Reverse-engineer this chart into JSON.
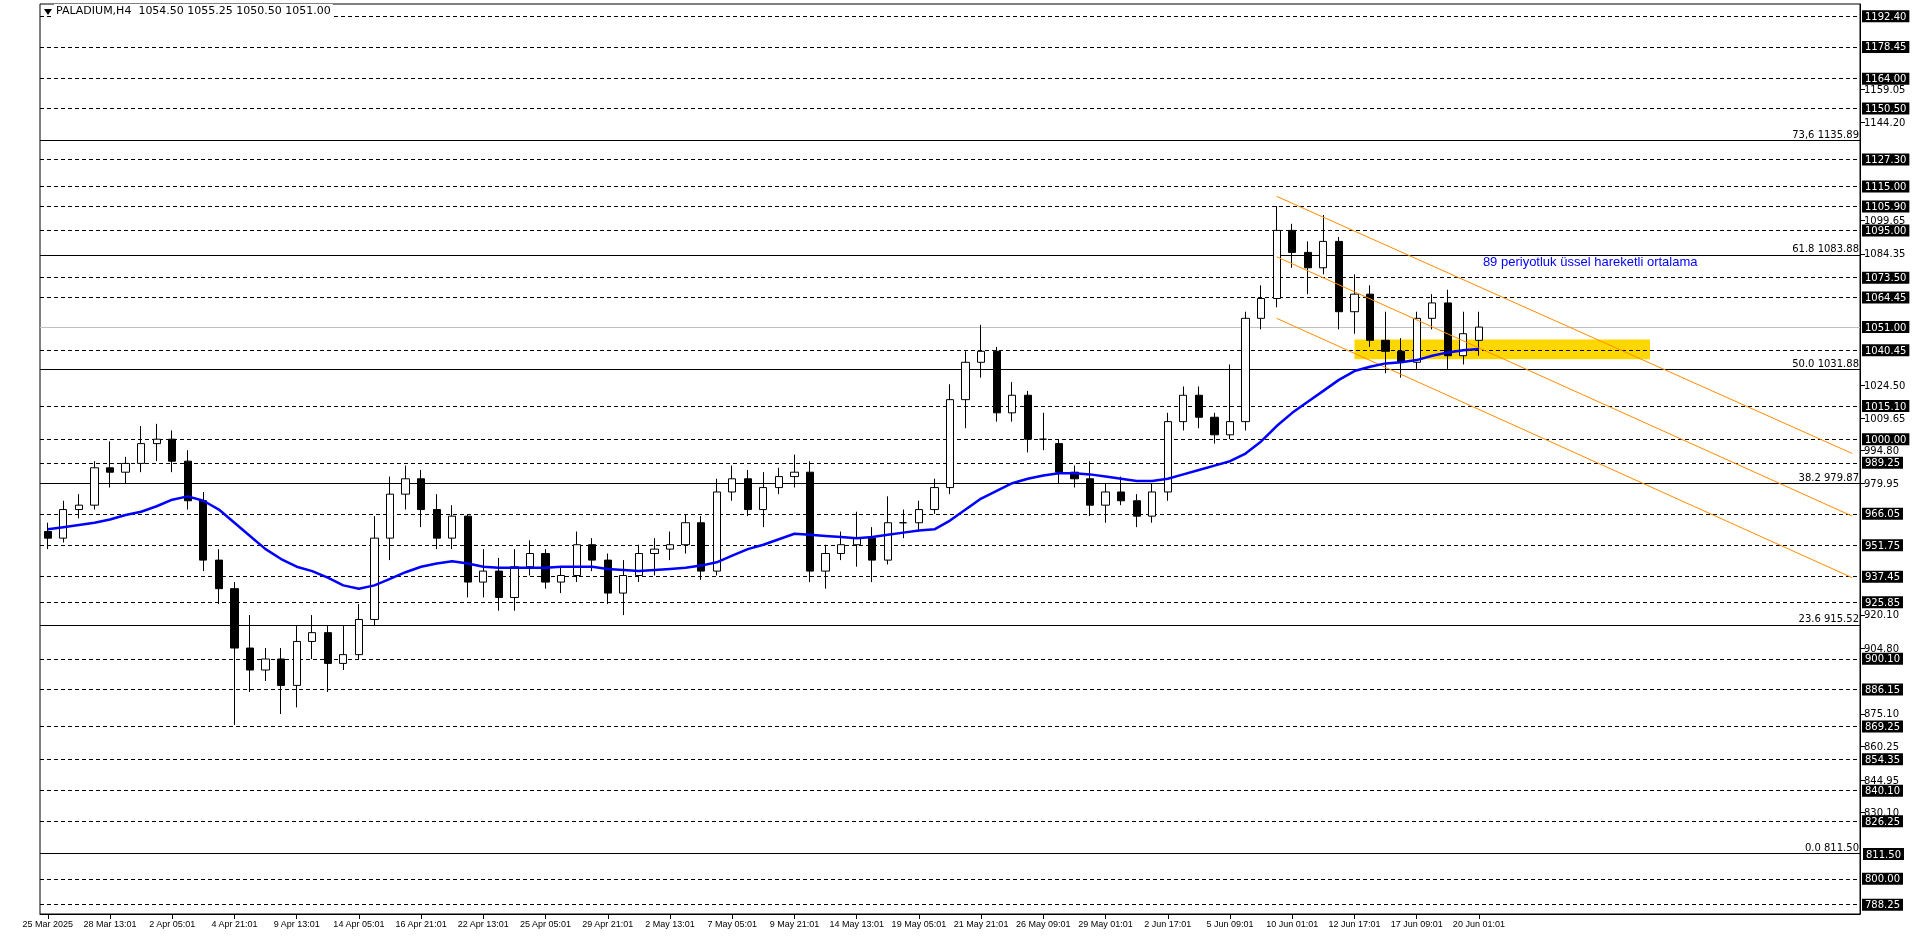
{
  "chart_data": {
    "type": "candlestick",
    "title": "PALADIUM,H4  1054.50 1055.25 1050.50 1051.00",
    "marker": "none",
    "categories": [
      "25 Mar 2025",
      null,
      null,
      null,
      "28 Mar 13:01",
      null,
      null,
      null,
      "2 Apr 05:01",
      null,
      null,
      null,
      "4 Apr 21:01",
      null,
      null,
      null,
      "9 Apr 13:01",
      null,
      null,
      null,
      "14 Apr 05:01",
      null,
      null,
      null,
      "16 Apr 21:01",
      null,
      null,
      null,
      "22 Apr 13:01",
      null,
      null,
      null,
      "25 Apr 05:01",
      null,
      null,
      null,
      "29 Apr 21:01",
      null,
      null,
      null,
      "2 May 13:01",
      null,
      null,
      null,
      "7 May 05:01",
      null,
      null,
      null,
      "9 May 21:01",
      null,
      null,
      null,
      "14 May 13:01",
      null,
      null,
      null,
      "19 May 05:01",
      null,
      null,
      null,
      "21 May 21:01",
      null,
      null,
      null,
      "26 May 09:01",
      null,
      null,
      null,
      "29 May 01:01",
      null,
      null,
      null,
      "2 Jun 17:01",
      null,
      null,
      null,
      "5 Jun 09:01",
      null,
      null,
      null,
      "10 Jun 01:01",
      null,
      null,
      null,
      "12 Jun 17:01",
      null,
      null,
      null,
      "17 Jun 09:01",
      null,
      null,
      null,
      "20 Jun 01:01",
      null,
      null,
      null,
      null,
      null,
      null,
      null,
      null,
      null,
      null,
      null,
      null,
      null,
      null,
      null,
      null,
      null,
      null,
      null,
      null,
      null,
      null,
      null,
      null
    ],
    "ylim": [
      784,
      1198
    ],
    "yticks": [
      {
        "value": 830.1,
        "label": "830.10"
      },
      {
        "value": 844.95,
        "label": "844.95"
      },
      {
        "value": 860.25,
        "label": "860.25"
      },
      {
        "value": 875.1,
        "label": "875.10"
      },
      {
        "value": 904.8,
        "label": "904.80"
      },
      {
        "value": 920.1,
        "label": "920.10"
      },
      {
        "value": 979.95,
        "label": "979.95"
      },
      {
        "value": 994.8,
        "label": "994.80"
      },
      {
        "value": 1009.65,
        "label": "1009.65"
      },
      {
        "value": 1024.5,
        "label": "1024.50"
      },
      {
        "value": 1084.35,
        "label": "1084.35"
      },
      {
        "value": 1099.65,
        "label": "1099.65"
      },
      {
        "value": 1144.2,
        "label": "1144.20"
      },
      {
        "value": 1159.05,
        "label": "1159.05"
      }
    ],
    "series": [
      {
        "color": "#000000",
        "ohlc": [
          [
            958,
            962,
            950,
            955
          ],
          [
            955,
            972,
            953,
            968
          ],
          [
            968,
            975,
            964,
            970
          ],
          [
            970,
            990,
            968,
            987
          ],
          [
            987,
            999,
            978,
            985
          ],
          [
            985,
            992,
            980,
            989
          ],
          [
            989,
            1006,
            985,
            998
          ],
          [
            998,
            1007,
            990,
            1000
          ],
          [
            1000,
            1004,
            985,
            990
          ],
          [
            990,
            995,
            968,
            972
          ],
          [
            972,
            976,
            940,
            945
          ],
          [
            945,
            950,
            925,
            932
          ],
          [
            932,
            935,
            870,
            905
          ],
          [
            905,
            920,
            885,
            895
          ],
          [
            895,
            905,
            890,
            900
          ],
          [
            900,
            905,
            875,
            888
          ],
          [
            888,
            915,
            878,
            908
          ],
          [
            908,
            920,
            900,
            912
          ],
          [
            912,
            915,
            885,
            898
          ],
          [
            898,
            915,
            895,
            902
          ],
          [
            902,
            925,
            900,
            918
          ],
          [
            918,
            965,
            915,
            955
          ],
          [
            955,
            983,
            945,
            975
          ],
          [
            975,
            988,
            968,
            982
          ],
          [
            982,
            986,
            960,
            968
          ],
          [
            968,
            975,
            950,
            955
          ],
          [
            955,
            970,
            950,
            965
          ],
          [
            965,
            966,
            928,
            935
          ],
          [
            935,
            950,
            928,
            940
          ],
          [
            940,
            946,
            922,
            928
          ],
          [
            928,
            950,
            922,
            942
          ],
          [
            942,
            954,
            938,
            948
          ],
          [
            948,
            950,
            932,
            935
          ],
          [
            935,
            942,
            930,
            938
          ],
          [
            938,
            958,
            935,
            952
          ],
          [
            952,
            955,
            940,
            945
          ],
          [
            945,
            948,
            925,
            930
          ],
          [
            930,
            945,
            920,
            938
          ],
          [
            938,
            952,
            935,
            948
          ],
          [
            948,
            955,
            938,
            950
          ],
          [
            950,
            958,
            945,
            952
          ],
          [
            952,
            966,
            948,
            962
          ],
          [
            962,
            965,
            936,
            940
          ],
          [
            940,
            982,
            938,
            976
          ],
          [
            976,
            988,
            972,
            982
          ],
          [
            982,
            986,
            965,
            968
          ],
          [
            968,
            985,
            960,
            978
          ],
          [
            978,
            987,
            975,
            983
          ],
          [
            983,
            993,
            978,
            985
          ],
          [
            985,
            990,
            935,
            940
          ],
          [
            940,
            952,
            932,
            948
          ],
          [
            948,
            958,
            945,
            952
          ],
          [
            952,
            967,
            942,
            955
          ],
          [
            955,
            960,
            935,
            945
          ],
          [
            945,
            974,
            943,
            962
          ],
          [
            962,
            968,
            955,
            962
          ],
          [
            962,
            972,
            958,
            968
          ],
          [
            968,
            982,
            966,
            978
          ],
          [
            978,
            1025,
            975,
            1018
          ],
          [
            1018,
            1040,
            1005,
            1035
          ],
          [
            1035,
            1052,
            1028,
            1040
          ],
          [
            1040,
            1042,
            1008,
            1012
          ],
          [
            1012,
            1026,
            1008,
            1020
          ],
          [
            1020,
            1022,
            994,
            1000
          ],
          [
            1000,
            1012,
            995,
            1000
          ],
          [
            998,
            1000,
            980,
            985
          ],
          [
            985,
            988,
            978,
            982
          ],
          [
            982,
            990,
            965,
            970
          ],
          [
            970,
            980,
            962,
            976
          ],
          [
            976,
            983,
            970,
            972
          ],
          [
            972,
            975,
            960,
            965
          ],
          [
            965,
            980,
            962,
            976
          ],
          [
            976,
            1012,
            972,
            1008
          ],
          [
            1008,
            1024,
            1004,
            1020
          ],
          [
            1020,
            1024,
            1005,
            1010
          ],
          [
            1010,
            1012,
            998,
            1002
          ],
          [
            1002,
            1034,
            1000,
            1008
          ],
          [
            1008,
            1058,
            1004,
            1055
          ],
          [
            1055,
            1070,
            1050,
            1064
          ],
          [
            1064,
            1106,
            1060,
            1095
          ],
          [
            1095,
            1098,
            1078,
            1085
          ],
          [
            1085,
            1090,
            1066,
            1078
          ],
          [
            1078,
            1102,
            1075,
            1090
          ],
          [
            1090,
            1092,
            1050,
            1058
          ],
          [
            1058,
            1075,
            1048,
            1066
          ],
          [
            1066,
            1070,
            1042,
            1045
          ],
          [
            1045,
            1058,
            1030,
            1040
          ],
          [
            1040,
            1046,
            1028,
            1035
          ],
          [
            1035,
            1058,
            1032,
            1055
          ],
          [
            1055,
            1066,
            1050,
            1062
          ],
          [
            1062,
            1068,
            1032,
            1038
          ],
          [
            1038,
            1058,
            1034,
            1048
          ],
          [
            1045,
            1058,
            1038,
            1051
          ],
          null,
          null,
          null,
          null,
          null,
          null,
          null,
          null,
          null,
          null,
          null,
          null,
          null,
          null,
          null,
          null,
          null,
          null,
          null,
          null,
          null,
          null,
          null,
          null
        ]
      },
      {
        "type": "line",
        "name": "89 periyotluk üssel hareketli ortalama",
        "color": "#0000ff",
        "values": [
          959,
          960,
          961,
          962,
          963.5,
          965.5,
          967,
          969.5,
          972.5,
          974,
          972,
          968,
          962,
          956,
          950,
          945.5,
          942,
          940,
          937,
          933.5,
          932,
          933.5,
          936.5,
          939.5,
          942,
          943.5,
          944.5,
          943.5,
          942,
          941.5,
          941.5,
          941.5,
          941.5,
          942,
          942,
          942,
          941,
          940.5,
          940,
          940.5,
          941,
          941.5,
          942.5,
          944,
          947,
          950,
          952,
          954.5,
          957,
          956.5,
          956,
          955.5,
          955,
          955.5,
          956.5,
          957.5,
          958.5,
          959,
          963,
          968,
          973,
          976.5,
          980,
          982,
          983.5,
          984.5,
          984.5,
          984,
          983,
          982,
          981,
          981,
          982,
          984,
          986,
          988,
          990,
          993.5,
          999,
          1006,
          1012,
          1017,
          1022,
          1027,
          1031,
          1033,
          1034.5,
          1035,
          1036,
          1038,
          1039.5,
          1040.5,
          1041,
          null,
          null,
          null,
          null,
          null,
          null,
          null,
          null,
          null,
          null,
          null,
          null,
          null,
          null,
          null,
          null,
          null,
          null,
          null,
          null,
          null,
          null,
          null,
          null
        ]
      },
      {
        "type": "line",
        "color": "#ff8c00",
        "values": [
          null,
          null,
          null,
          null,
          null,
          null,
          null,
          null,
          null,
          null,
          null,
          null,
          null,
          null,
          null,
          null,
          null,
          null,
          null,
          null,
          null,
          null,
          null,
          null,
          null,
          null,
          null,
          null,
          null,
          null,
          null,
          null,
          null,
          null,
          null,
          null,
          null,
          null,
          null,
          null,
          null,
          null,
          null,
          null,
          null,
          null,
          null,
          null,
          null,
          null,
          null,
          null,
          null,
          null,
          null,
          null,
          null,
          null,
          null,
          null,
          null,
          null,
          null,
          null,
          null,
          null,
          null,
          null,
          null,
          null,
          null,
          null,
          null,
          null,
          null,
          null,
          null,
          null,
          null,
          1110.5,
          null,
          null,
          null,
          null,
          null,
          null,
          null,
          null,
          null,
          null,
          null,
          null,
          null,
          null,
          null,
          null,
          null,
          null,
          null,
          null,
          null,
          null,
          null,
          null,
          null,
          null,
          null,
          null,
          null,
          null,
          null,
          null,
          null,
          null,
          null,
          null,
          993.5
        ]
      },
      {
        "type": "line",
        "color": "#ff8c00",
        "values": [
          null,
          null,
          null,
          null,
          null,
          null,
          null,
          null,
          null,
          null,
          null,
          null,
          null,
          null,
          null,
          null,
          null,
          null,
          null,
          null,
          null,
          null,
          null,
          null,
          null,
          null,
          null,
          null,
          null,
          null,
          null,
          null,
          null,
          null,
          null,
          null,
          null,
          null,
          null,
          null,
          null,
          null,
          null,
          null,
          null,
          null,
          null,
          null,
          null,
          null,
          null,
          null,
          null,
          null,
          null,
          null,
          null,
          null,
          null,
          null,
          null,
          null,
          null,
          null,
          null,
          null,
          null,
          null,
          null,
          null,
          null,
          null,
          null,
          null,
          null,
          null,
          null,
          null,
          null,
          1083,
          null,
          null,
          null,
          null,
          null,
          null,
          null,
          null,
          null,
          null,
          null,
          null,
          null,
          null,
          null,
          null,
          null,
          null,
          null,
          null,
          null,
          null,
          null,
          null,
          null,
          null,
          null,
          null,
          null,
          null,
          null,
          null,
          null,
          null,
          null,
          null,
          965
        ]
      },
      {
        "type": "line",
        "color": "#ff8c00",
        "values": [
          null,
          null,
          null,
          null,
          null,
          null,
          null,
          null,
          null,
          null,
          null,
          null,
          null,
          null,
          null,
          null,
          null,
          null,
          null,
          null,
          null,
          null,
          null,
          null,
          null,
          null,
          null,
          null,
          null,
          null,
          null,
          null,
          null,
          null,
          null,
          null,
          null,
          null,
          null,
          null,
          null,
          null,
          null,
          null,
          null,
          null,
          null,
          null,
          null,
          null,
          null,
          null,
          null,
          null,
          null,
          null,
          null,
          null,
          null,
          null,
          null,
          null,
          null,
          null,
          null,
          null,
          null,
          null,
          null,
          null,
          null,
          null,
          null,
          null,
          null,
          null,
          null,
          null,
          null,
          1055,
          null,
          null,
          null,
          null,
          null,
          null,
          null,
          null,
          null,
          null,
          null,
          null,
          null,
          null,
          null,
          null,
          null,
          null,
          null,
          null,
          null,
          null,
          null,
          null,
          null,
          null,
          null,
          null,
          null,
          null,
          null,
          null,
          null,
          null,
          null,
          null,
          937
        ]
      }
    ],
    "annotations": [
      "811.50"
    ],
    "bands": [
      {
        "axis": "y",
        "from": 1036.4,
        "to": 1045.4,
        "color": "#ffd700"
      }
    ],
    "ref_lines": [
      {
        "axis": "y",
        "value": 1192.4,
        "label": "1192.40",
        "line_style": "dashed"
      },
      {
        "axis": "y",
        "value": 1178.45,
        "label": "1178.45",
        "line_style": "dashed"
      },
      {
        "axis": "y",
        "value": 1164.0,
        "label": "1164.00",
        "line_style": "dashed"
      },
      {
        "axis": "y",
        "value": 1150.5,
        "label": "1150.50",
        "line_style": "dashed"
      },
      {
        "axis": "y",
        "value": 1135.89,
        "label": "73,6 1135.89",
        "line_style": "solid"
      },
      {
        "axis": "y",
        "value": 1127.3,
        "label": "1127.30",
        "line_style": "dashed"
      },
      {
        "axis": "y",
        "value": 1115.0,
        "label": "1115.00",
        "line_style": "dashed"
      },
      {
        "axis": "y",
        "value": 1105.9,
        "label": "1105.90",
        "line_style": "dashed"
      },
      {
        "axis": "y",
        "value": 1095.0,
        "label": "1095.00",
        "line_style": "dashed"
      },
      {
        "axis": "y",
        "value": 1083.88,
        "label": "61.8 1083.88",
        "line_style": "solid"
      },
      {
        "axis": "y",
        "value": 1073.5,
        "label": "1073.50",
        "line_style": "dashed"
      },
      {
        "axis": "y",
        "value": 1064.45,
        "label": "1064.45",
        "line_style": "dashed"
      },
      {
        "axis": "y",
        "value": 1051.0,
        "label": "1051.00",
        "line_style": "solid",
        "color": "#c0c0c0"
      },
      {
        "axis": "y",
        "value": 1040.45,
        "label": "1040.45",
        "line_style": "dashed"
      },
      {
        "axis": "y",
        "value": 1031.88,
        "label": "50.0 1031.88",
        "line_style": "solid"
      },
      {
        "axis": "y",
        "value": 1015.1,
        "label": "1015.10",
        "line_style": "dashed"
      },
      {
        "axis": "y",
        "value": 1000.0,
        "label": "1000.00",
        "line_style": "dashed"
      },
      {
        "axis": "y",
        "value": 989.25,
        "label": "989.25",
        "line_style": "dashed"
      },
      {
        "axis": "y",
        "value": 979.87,
        "label": "38.2 979.87",
        "line_style": "solid"
      },
      {
        "axis": "y",
        "value": 966.05,
        "label": "966.05",
        "line_style": "dashed"
      },
      {
        "axis": "y",
        "value": 951.75,
        "label": "951.75",
        "line_style": "dashed"
      },
      {
        "axis": "y",
        "value": 937.45,
        "label": "937.45",
        "line_style": "dashed"
      },
      {
        "axis": "y",
        "value": 925.85,
        "label": "925.85",
        "line_style": "dashed"
      },
      {
        "axis": "y",
        "value": 915.52,
        "label": "23.6 915.52",
        "line_style": "solid"
      },
      {
        "axis": "y",
        "value": 900.1,
        "label": "900.10",
        "line_style": "dashed"
      },
      {
        "axis": "y",
        "value": 886.15,
        "label": "886.15",
        "line_style": "dashed"
      },
      {
        "axis": "y",
        "value": 869.25,
        "label": "869.25",
        "line_style": "dashed"
      },
      {
        "axis": "y",
        "value": 854.35,
        "label": "854.35",
        "line_style": "dashed"
      },
      {
        "axis": "y",
        "value": 840.1,
        "label": "840.10",
        "line_style": "dashed"
      },
      {
        "axis": "y",
        "value": 826.25,
        "label": "826.25",
        "line_style": "dashed"
      },
      {
        "axis": "y",
        "value": 811.5,
        "label": "0.0 811.50",
        "line_style": "solid"
      },
      {
        "axis": "y",
        "value": 800.0,
        "label": "800.00",
        "line_style": "dashed"
      },
      {
        "axis": "y",
        "value": 788.25,
        "label": "788.25",
        "line_style": "dashed"
      }
    ]
  }
}
